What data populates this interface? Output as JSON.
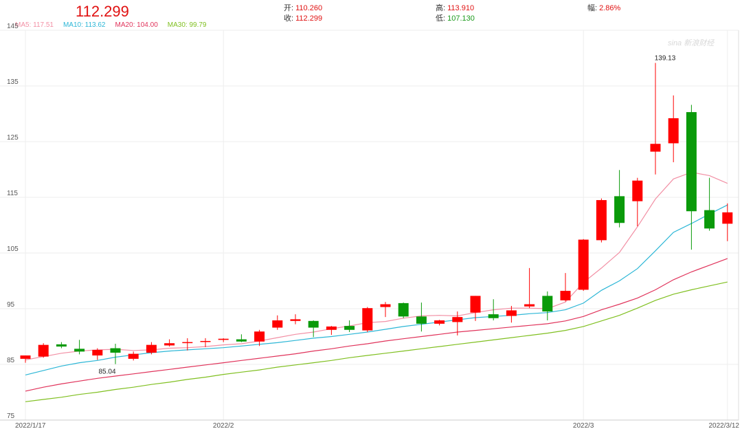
{
  "header": {
    "price": "112.299",
    "open_label": "开:",
    "open_value": "110.260",
    "close_label": "收:",
    "close_value": "112.299",
    "high_label": "高:",
    "high_value": "113.910",
    "low_label": "低:",
    "low_value": "107.130",
    "change_label": "幅:",
    "change_value": "2.86%"
  },
  "ma_legend": [
    {
      "text": "MA5: 117.51",
      "color": "#f28fa4"
    },
    {
      "text": "MA10: 113.62",
      "color": "#2bb6d6"
    },
    {
      "text": "MA20: 104.00",
      "color": "#e0325a"
    },
    {
      "text": "MA30: 99.79",
      "color": "#7fbf1f"
    }
  ],
  "watermark": "sina 新浪财经",
  "colors": {
    "up": "#ff0000",
    "down": "#0a9a0a",
    "grid": "#eeeeee",
    "axis_text": "#555555"
  },
  "chart_data": {
    "type": "candlestick",
    "ylim": [
      75,
      145
    ],
    "y_ticks": [
      75,
      85,
      95,
      105,
      115,
      125,
      135,
      145
    ],
    "x_tick_labels": [
      {
        "label": "2022/1/17",
        "index": 0
      },
      {
        "label": "2022/2",
        "index": 11
      },
      {
        "label": "2022/3",
        "index": 31
      },
      {
        "label": "2022/3/12",
        "index": 39
      }
    ],
    "annotations": [
      {
        "text": "139.13",
        "index": 35,
        "value": 139.13
      },
      {
        "text": "85.04",
        "index": 5,
        "value": 85.04
      }
    ],
    "candles": [
      {
        "o": 86.0,
        "h": 86.6,
        "l": 85.3,
        "c": 86.6
      },
      {
        "o": 86.4,
        "h": 88.8,
        "l": 86.2,
        "c": 88.5
      },
      {
        "o": 88.6,
        "h": 89.0,
        "l": 87.9,
        "c": 88.2
      },
      {
        "o": 87.8,
        "h": 89.4,
        "l": 86.8,
        "c": 87.3
      },
      {
        "o": 86.6,
        "h": 87.9,
        "l": 85.8,
        "c": 87.6
      },
      {
        "o": 87.9,
        "h": 88.7,
        "l": 85.04,
        "c": 87.1
      },
      {
        "o": 86.0,
        "h": 87.3,
        "l": 85.7,
        "c": 86.9
      },
      {
        "o": 87.1,
        "h": 89.0,
        "l": 86.8,
        "c": 88.5
      },
      {
        "o": 88.4,
        "h": 89.5,
        "l": 88.2,
        "c": 88.8
      },
      {
        "o": 88.9,
        "h": 89.7,
        "l": 87.5,
        "c": 89.0
      },
      {
        "o": 89.1,
        "h": 89.7,
        "l": 88.1,
        "c": 89.2
      },
      {
        "o": 89.4,
        "h": 89.7,
        "l": 89.0,
        "c": 89.6
      },
      {
        "o": 89.5,
        "h": 90.4,
        "l": 89.0,
        "c": 89.1
      },
      {
        "o": 89.1,
        "h": 91.2,
        "l": 88.3,
        "c": 90.9
      },
      {
        "o": 91.6,
        "h": 93.8,
        "l": 91.2,
        "c": 92.9
      },
      {
        "o": 92.8,
        "h": 94.0,
        "l": 92.2,
        "c": 93.1
      },
      {
        "o": 92.8,
        "h": 92.9,
        "l": 89.9,
        "c": 91.6
      },
      {
        "o": 91.2,
        "h": 91.9,
        "l": 90.3,
        "c": 91.8
      },
      {
        "o": 91.9,
        "h": 92.9,
        "l": 90.8,
        "c": 91.2
      },
      {
        "o": 91.1,
        "h": 95.3,
        "l": 90.8,
        "c": 95.1
      },
      {
        "o": 95.3,
        "h": 96.2,
        "l": 93.5,
        "c": 95.8
      },
      {
        "o": 96.0,
        "h": 96.1,
        "l": 93.3,
        "c": 93.6
      },
      {
        "o": 93.6,
        "h": 96.1,
        "l": 90.9,
        "c": 92.3
      },
      {
        "o": 92.3,
        "h": 93.0,
        "l": 92.0,
        "c": 92.9
      },
      {
        "o": 92.6,
        "h": 94.5,
        "l": 90.2,
        "c": 93.5
      },
      {
        "o": 94.3,
        "h": 97.3,
        "l": 92.8,
        "c": 97.3
      },
      {
        "o": 94.0,
        "h": 96.7,
        "l": 92.9,
        "c": 93.3
      },
      {
        "o": 93.7,
        "h": 95.5,
        "l": 92.5,
        "c": 94.7
      },
      {
        "o": 95.4,
        "h": 102.3,
        "l": 95.1,
        "c": 95.8
      },
      {
        "o": 97.3,
        "h": 98.1,
        "l": 92.9,
        "c": 94.5
      },
      {
        "o": 96.5,
        "h": 101.4,
        "l": 96.3,
        "c": 98.2
      },
      {
        "o": 98.4,
        "h": 107.5,
        "l": 98.2,
        "c": 107.4
      },
      {
        "o": 107.3,
        "h": 114.8,
        "l": 106.9,
        "c": 114.5
      },
      {
        "o": 115.2,
        "h": 119.9,
        "l": 109.6,
        "c": 110.4
      },
      {
        "o": 114.3,
        "h": 118.5,
        "l": 109.8,
        "c": 118.0
      },
      {
        "o": 123.2,
        "h": 139.13,
        "l": 119.1,
        "c": 124.6
      },
      {
        "o": 124.7,
        "h": 133.3,
        "l": 121.3,
        "c": 129.2
      },
      {
        "o": 130.3,
        "h": 131.6,
        "l": 105.6,
        "c": 112.5
      },
      {
        "o": 112.7,
        "h": 118.5,
        "l": 109.0,
        "c": 109.4
      },
      {
        "o": 110.26,
        "h": 113.91,
        "l": 107.13,
        "c": 112.3
      }
    ],
    "series": [
      {
        "name": "MA5",
        "color": "#f28fa4",
        "values": [
          85.8,
          86.4,
          87.0,
          87.4,
          87.6,
          87.7,
          87.5,
          87.6,
          87.9,
          88.0,
          88.2,
          88.5,
          88.7,
          89.2,
          89.8,
          90.4,
          90.8,
          91.4,
          91.9,
          92.5,
          92.7,
          93.3,
          93.7,
          93.8,
          93.7,
          94.3,
          94.8,
          95.1,
          95.1,
          95.0,
          96.2,
          99.7,
          102.3,
          105.1,
          109.7,
          114.7,
          118.3,
          119.5,
          118.9,
          117.51
        ]
      },
      {
        "name": "MA10",
        "color": "#2bb6d6",
        "values": [
          83.1,
          83.9,
          84.7,
          85.3,
          85.7,
          86.3,
          86.7,
          87.1,
          87.4,
          87.6,
          87.8,
          88.0,
          88.3,
          88.6,
          88.9,
          89.3,
          89.7,
          90.0,
          90.4,
          90.8,
          91.3,
          91.8,
          92.2,
          92.6,
          93.0,
          93.4,
          93.6,
          93.8,
          94.1,
          94.3,
          94.8,
          96.0,
          98.3,
          100.0,
          102.2,
          105.4,
          108.7,
          110.3,
          112.0,
          113.62
        ]
      },
      {
        "name": "MA20",
        "color": "#e0325a",
        "values": [
          80.2,
          80.9,
          81.5,
          82.0,
          82.5,
          82.9,
          83.3,
          83.7,
          84.1,
          84.5,
          84.9,
          85.3,
          85.7,
          86.1,
          86.5,
          86.9,
          87.4,
          87.8,
          88.3,
          88.7,
          89.2,
          89.6,
          90.0,
          90.4,
          90.8,
          91.1,
          91.4,
          91.7,
          92.0,
          92.3,
          92.8,
          93.6,
          94.8,
          95.8,
          96.9,
          98.4,
          100.2,
          101.6,
          102.8,
          104.0
        ]
      },
      {
        "name": "MA30",
        "color": "#7fbf1f",
        "values": [
          78.3,
          78.7,
          79.1,
          79.6,
          80.0,
          80.5,
          80.9,
          81.4,
          81.8,
          82.3,
          82.7,
          83.2,
          83.6,
          84.0,
          84.5,
          84.9,
          85.3,
          85.7,
          86.2,
          86.6,
          87.0,
          87.4,
          87.8,
          88.2,
          88.6,
          89.0,
          89.4,
          89.8,
          90.2,
          90.6,
          91.1,
          91.8,
          92.8,
          93.8,
          95.1,
          96.5,
          97.6,
          98.4,
          99.1,
          99.79
        ]
      }
    ]
  }
}
